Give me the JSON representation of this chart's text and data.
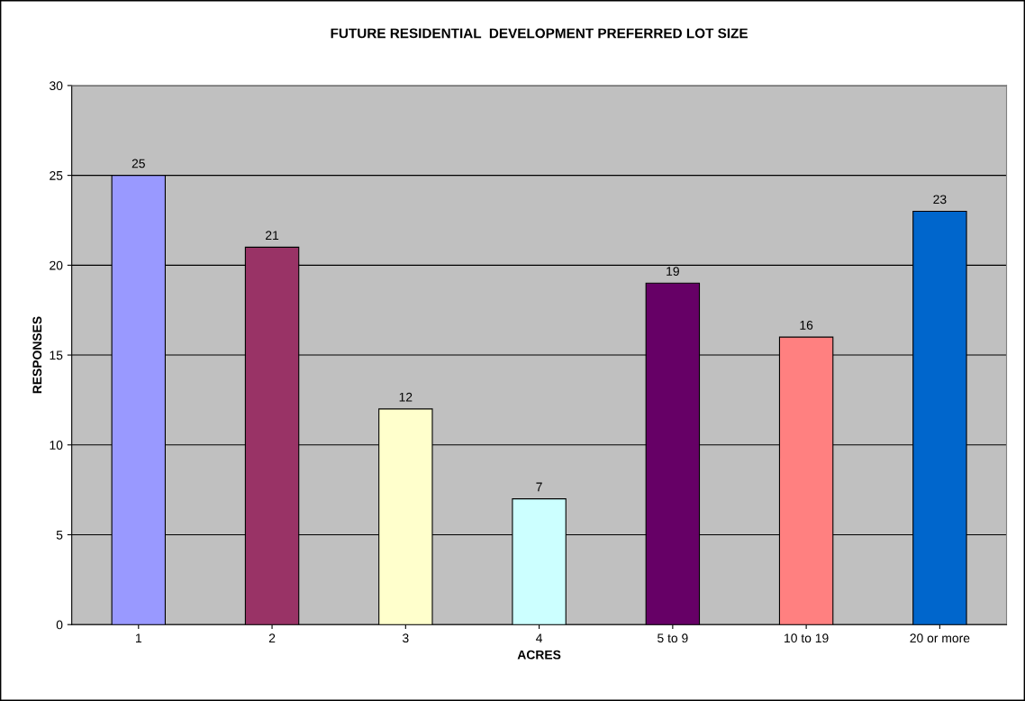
{
  "chart_data": {
    "type": "bar",
    "title": "FUTURE RESIDENTIAL  DEVELOPMENT PREFERRED LOT SIZE",
    "xlabel": "ACRES",
    "ylabel": "RESPONSES",
    "categories": [
      "1",
      "2",
      "3",
      "4",
      "5 to 9",
      "10 to 19",
      "20 or more"
    ],
    "values": [
      25,
      21,
      12,
      7,
      19,
      16,
      23
    ],
    "colors": [
      "#9999ff",
      "#993366",
      "#ffffcc",
      "#ccffff",
      "#660066",
      "#ff8080",
      "#0066cc"
    ],
    "ylim": [
      0,
      30
    ],
    "yticks": [
      0,
      5,
      10,
      15,
      20,
      25,
      30
    ],
    "grid": "y",
    "data_labels": true,
    "legend": false
  }
}
